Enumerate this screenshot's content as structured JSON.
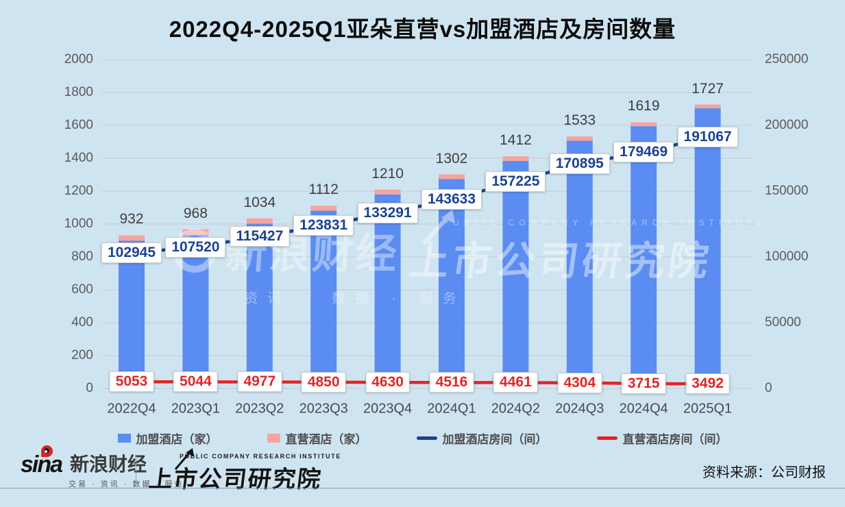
{
  "title": "2022Q4-2025Q1亚朵直营vs加盟酒店及房间数量",
  "colors": {
    "background": "#cfe4f1",
    "grid": "#c6cdd4",
    "bar_franchise": "#5a8cf2",
    "bar_direct": "#f6a49e",
    "line_franchise_rooms": "#1a4191",
    "line_direct_rooms": "#e32424",
    "bar_total_label": "#3e3e3e"
  },
  "chart_data": {
    "type": "combo",
    "description": "Stacked bars = hotel counts (left axis), two lines with value boxes = room counts (right axis)",
    "categories": [
      "2022Q4",
      "2023Q1",
      "2023Q2",
      "2023Q3",
      "2023Q4",
      "2024Q1",
      "2024Q2",
      "2024Q3",
      "2024Q4",
      "2025Q1"
    ],
    "left_axis": {
      "min": 0,
      "max": 2000,
      "step": 200,
      "ticks": [
        2000,
        1800,
        1600,
        1400,
        1200,
        1000,
        800,
        600,
        400,
        200,
        0
      ]
    },
    "right_axis": {
      "min": 0,
      "max": 250000,
      "step": 50000,
      "ticks": [
        250000,
        200000,
        150000,
        100000,
        50000,
        0
      ]
    },
    "total_hotels_labels": [
      932,
      968,
      1034,
      1112,
      1210,
      1302,
      1412,
      1533,
      1619,
      1727
    ],
    "series": [
      {
        "name": "加盟酒店（家）",
        "type": "bar",
        "axis": "left",
        "color": "#5a8cf2",
        "estimated": true,
        "values": [
          899,
          935,
          1002,
          1081,
          1180,
          1273,
          1384,
          1507,
          1595,
          1704
        ]
      },
      {
        "name": "直营酒店（家）",
        "type": "bar",
        "axis": "left",
        "color": "#f6a49e",
        "estimated": true,
        "values": [
          33,
          33,
          32,
          31,
          30,
          29,
          28,
          26,
          24,
          23
        ]
      },
      {
        "name": "加盟酒店房间（间）",
        "type": "line",
        "axis": "right",
        "color": "#1a4191",
        "values": [
          102945,
          107520,
          115427,
          123831,
          133291,
          143633,
          157225,
          170895,
          179469,
          191067
        ]
      },
      {
        "name": "直营酒店房间（间）",
        "type": "line",
        "axis": "right",
        "color": "#e32424",
        "values": [
          5053,
          5044,
          4977,
          4850,
          4630,
          4516,
          4461,
          4304,
          3715,
          3492
        ]
      }
    ],
    "legend_position": "bottom",
    "grid": true
  },
  "legend": {
    "items": [
      {
        "label": "加盟酒店（家）"
      },
      {
        "label": "直营酒店（家）"
      },
      {
        "label": "加盟酒店房间（间）"
      },
      {
        "label": "直营酒店房间（间）"
      }
    ]
  },
  "watermarks": {
    "left_main": "新浪财经",
    "left_sub": "· 资讯 · 数据 · 服务",
    "right_en": "PUBLIC COMPANY RESEARCH INSTITUTE",
    "right_main": "上市公司研究院"
  },
  "footer": {
    "sina_wordmark": "sina",
    "sina_brand": "新浪财经",
    "sina_tagline": "交易 · 资讯 · 数据 · 服务",
    "institute_en": "PUBLIC COMPANY RESEARCH INSTITUTE",
    "institute_cn": "上市公司研究院",
    "source": "资料来源：公司财报"
  }
}
